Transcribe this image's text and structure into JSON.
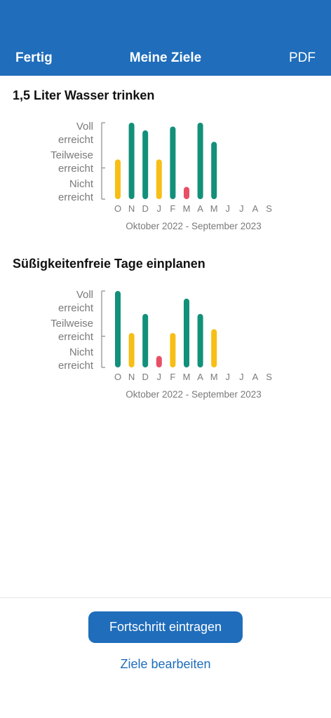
{
  "navbar": {
    "left_label": "Fertig",
    "title": "Meine Ziele",
    "right_label": "PDF"
  },
  "goals": [
    {
      "title": "1,5 Liter Wasser trinken",
      "chart_data": {
        "type": "bar",
        "categories": [
          "O",
          "N",
          "D",
          "J",
          "F",
          "M",
          "A",
          "M",
          "J",
          "J",
          "A",
          "S"
        ],
        "values": [
          0.52,
          1.0,
          0.9,
          0.52,
          0.95,
          0.16,
          1.0,
          0.75,
          null,
          null,
          null,
          null
        ],
        "status": [
          "partial",
          "full",
          "full",
          "partial",
          "full",
          "none",
          "full",
          "full",
          null,
          null,
          null,
          null
        ],
        "y_labels": [
          [
            "Voll",
            "erreicht"
          ],
          [
            "Teilweise",
            "erreicht"
          ],
          [
            "Nicht",
            "erreicht"
          ]
        ],
        "period": "Oktober 2022 - September 2023",
        "ylim": [
          0,
          1
        ]
      }
    },
    {
      "title": "Süßigkeitenfreie Tage einplanen",
      "chart_data": {
        "type": "bar",
        "categories": [
          "O",
          "N",
          "D",
          "J",
          "F",
          "M",
          "A",
          "M",
          "J",
          "J",
          "A",
          "S"
        ],
        "values": [
          1.0,
          0.45,
          0.7,
          0.15,
          0.45,
          0.9,
          0.7,
          0.5,
          null,
          null,
          null,
          null
        ],
        "status": [
          "full",
          "partial",
          "full",
          "none",
          "partial",
          "full",
          "full",
          "partial",
          null,
          null,
          null,
          null
        ],
        "y_labels": [
          [
            "Voll",
            "erreicht"
          ],
          [
            "Teilweise",
            "erreicht"
          ],
          [
            "Nicht",
            "erreicht"
          ]
        ],
        "period": "Oktober 2022 - September 2023",
        "ylim": [
          0,
          1
        ]
      }
    }
  ],
  "colors": {
    "full": "#12907a",
    "partial": "#f7be16",
    "none": "#e94f64",
    "axis": "#8a8a8a",
    "brand": "#1f6dbb"
  },
  "footer": {
    "primary_button": "Fortschritt eintragen",
    "secondary_link": "Ziele bearbeiten"
  }
}
